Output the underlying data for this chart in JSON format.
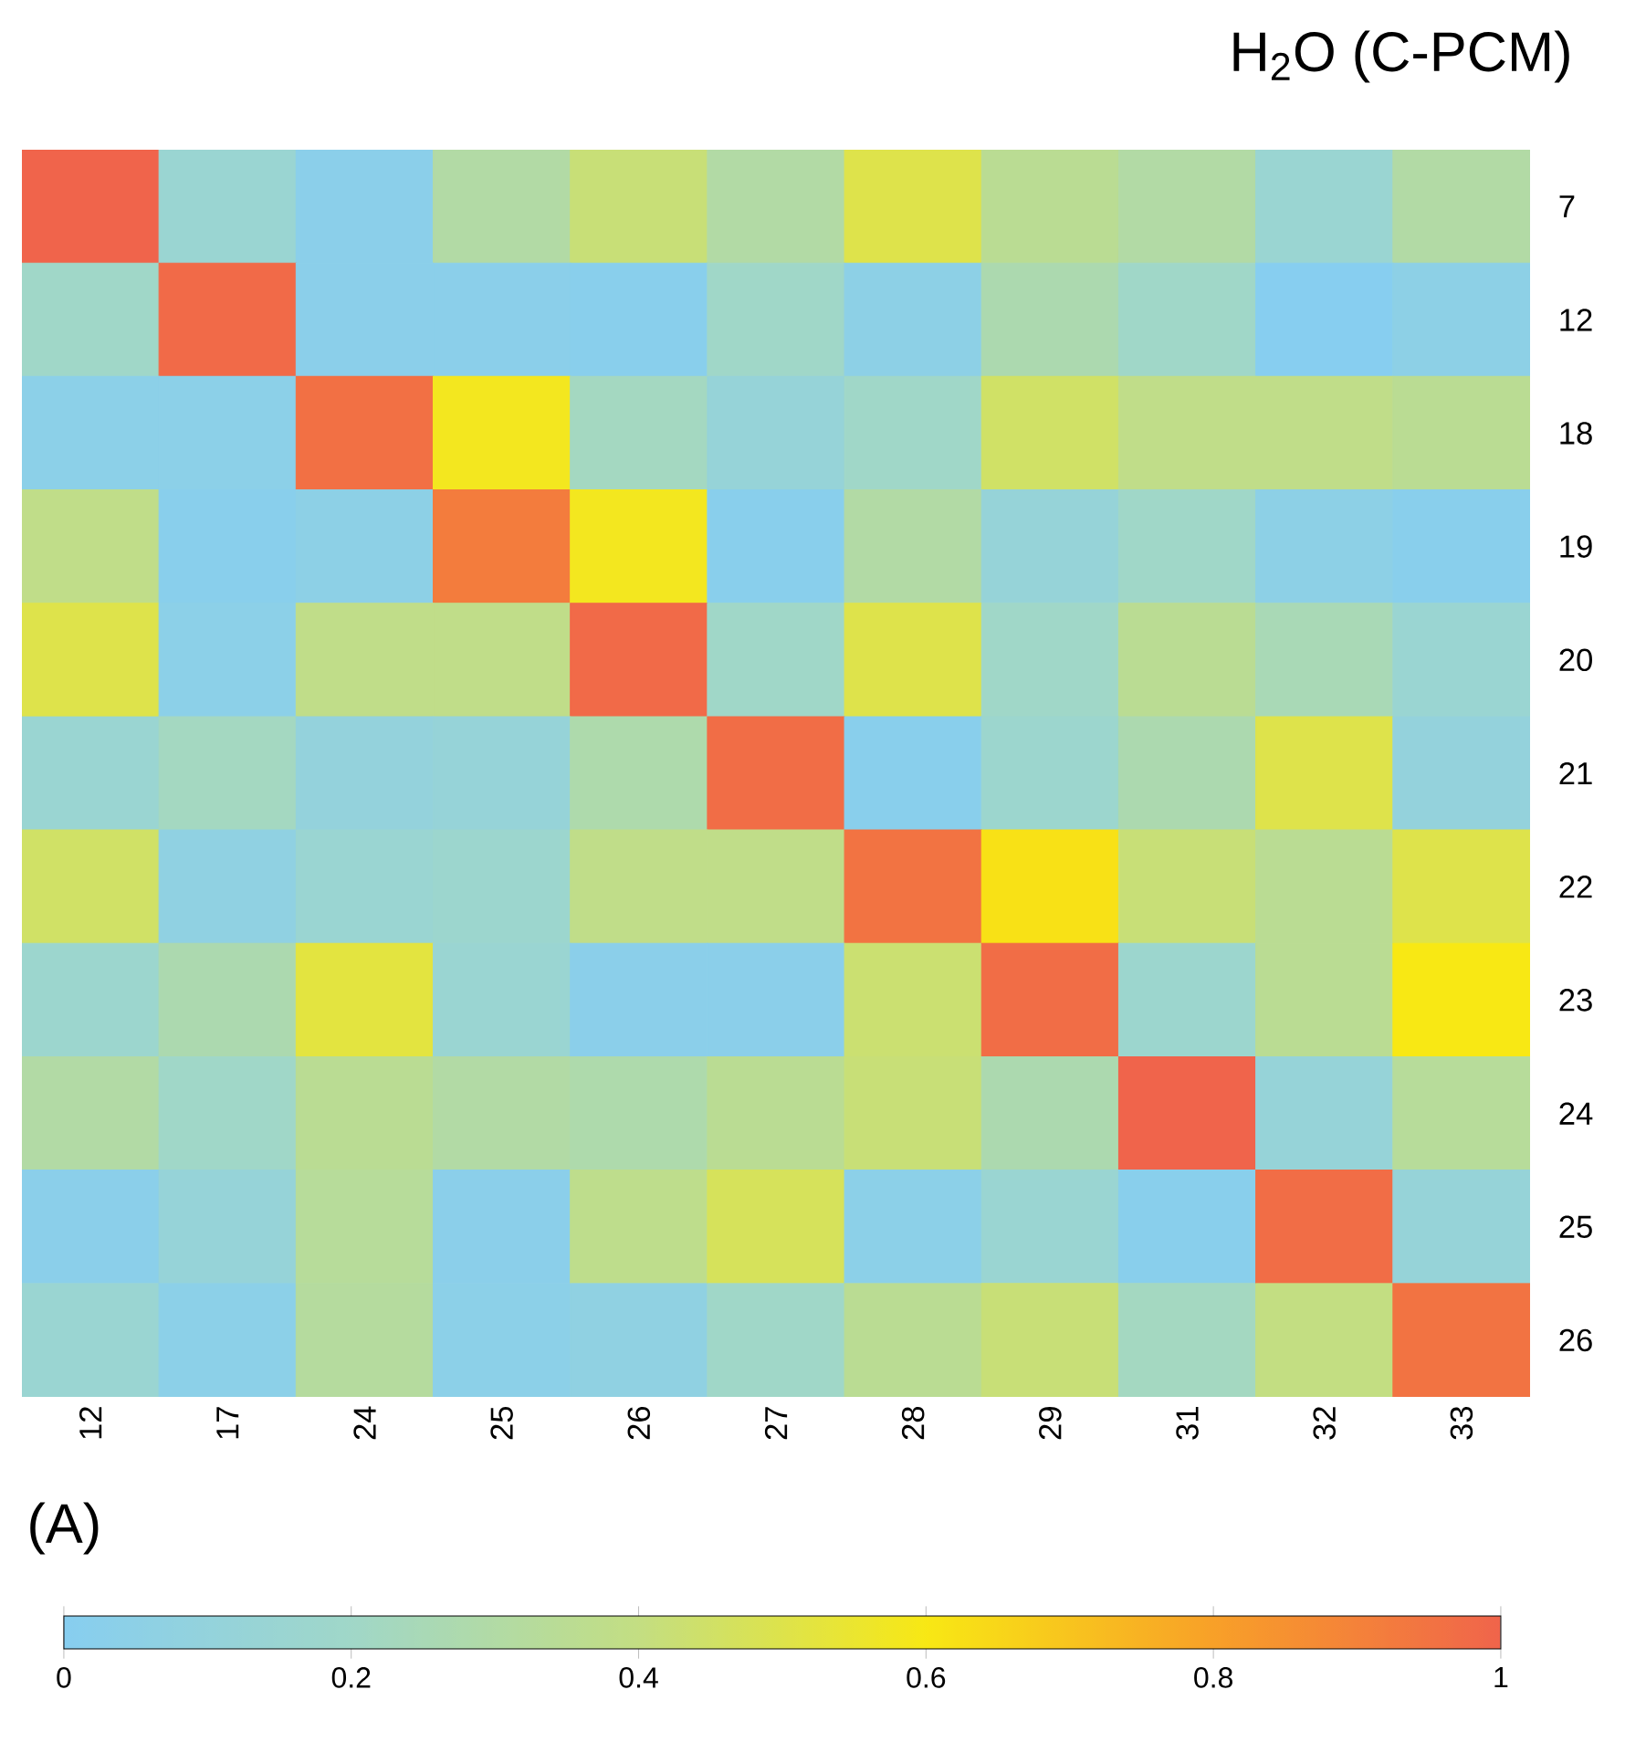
{
  "chart_data": {
    "type": "heatmap",
    "title": "H$_{2}$O (C-PCM)",
    "annotations": [
      "(A)"
    ],
    "categories": [
      "12",
      "17",
      "24",
      "25",
      "26",
      "27",
      "28",
      "29",
      "31",
      "32",
      "33"
    ],
    "y_categories": [
      "7",
      "12",
      "18",
      "19",
      "20",
      "21",
      "22",
      "23",
      "24",
      "25",
      "26"
    ],
    "cells": [
      [
        1.0,
        0.15,
        0.03,
        0.3,
        0.42,
        0.3,
        0.5,
        0.35,
        0.3,
        0.15,
        0.3
      ],
      [
        0.2,
        0.98,
        0.03,
        0.03,
        0.02,
        0.2,
        0.05,
        0.27,
        0.2,
        0.0,
        0.05
      ],
      [
        0.04,
        0.04,
        0.96,
        0.58,
        0.22,
        0.12,
        0.2,
        0.45,
        0.38,
        0.38,
        0.35
      ],
      [
        0.38,
        0.02,
        0.05,
        0.92,
        0.58,
        0.02,
        0.3,
        0.12,
        0.2,
        0.05,
        0.02
      ],
      [
        0.5,
        0.04,
        0.38,
        0.38,
        0.98,
        0.2,
        0.5,
        0.2,
        0.35,
        0.25,
        0.15
      ],
      [
        0.15,
        0.22,
        0.1,
        0.12,
        0.28,
        0.97,
        0.02,
        0.17,
        0.27,
        0.5,
        0.1
      ],
      [
        0.45,
        0.07,
        0.15,
        0.17,
        0.38,
        0.38,
        0.95,
        0.62,
        0.42,
        0.35,
        0.5
      ],
      [
        0.17,
        0.27,
        0.52,
        0.15,
        0.03,
        0.03,
        0.43,
        0.97,
        0.17,
        0.35,
        0.6
      ],
      [
        0.3,
        0.2,
        0.35,
        0.3,
        0.28,
        0.35,
        0.42,
        0.27,
        1.0,
        0.12,
        0.33
      ],
      [
        0.03,
        0.12,
        0.33,
        0.03,
        0.37,
        0.47,
        0.04,
        0.15,
        0.02,
        0.97,
        0.12
      ],
      [
        0.15,
        0.04,
        0.32,
        0.04,
        0.07,
        0.2,
        0.35,
        0.42,
        0.22,
        0.4,
        0.95
      ]
    ],
    "clim": [
      0,
      1
    ],
    "cticks": [
      0,
      0.2,
      0.4,
      0.6,
      0.8,
      1
    ]
  }
}
